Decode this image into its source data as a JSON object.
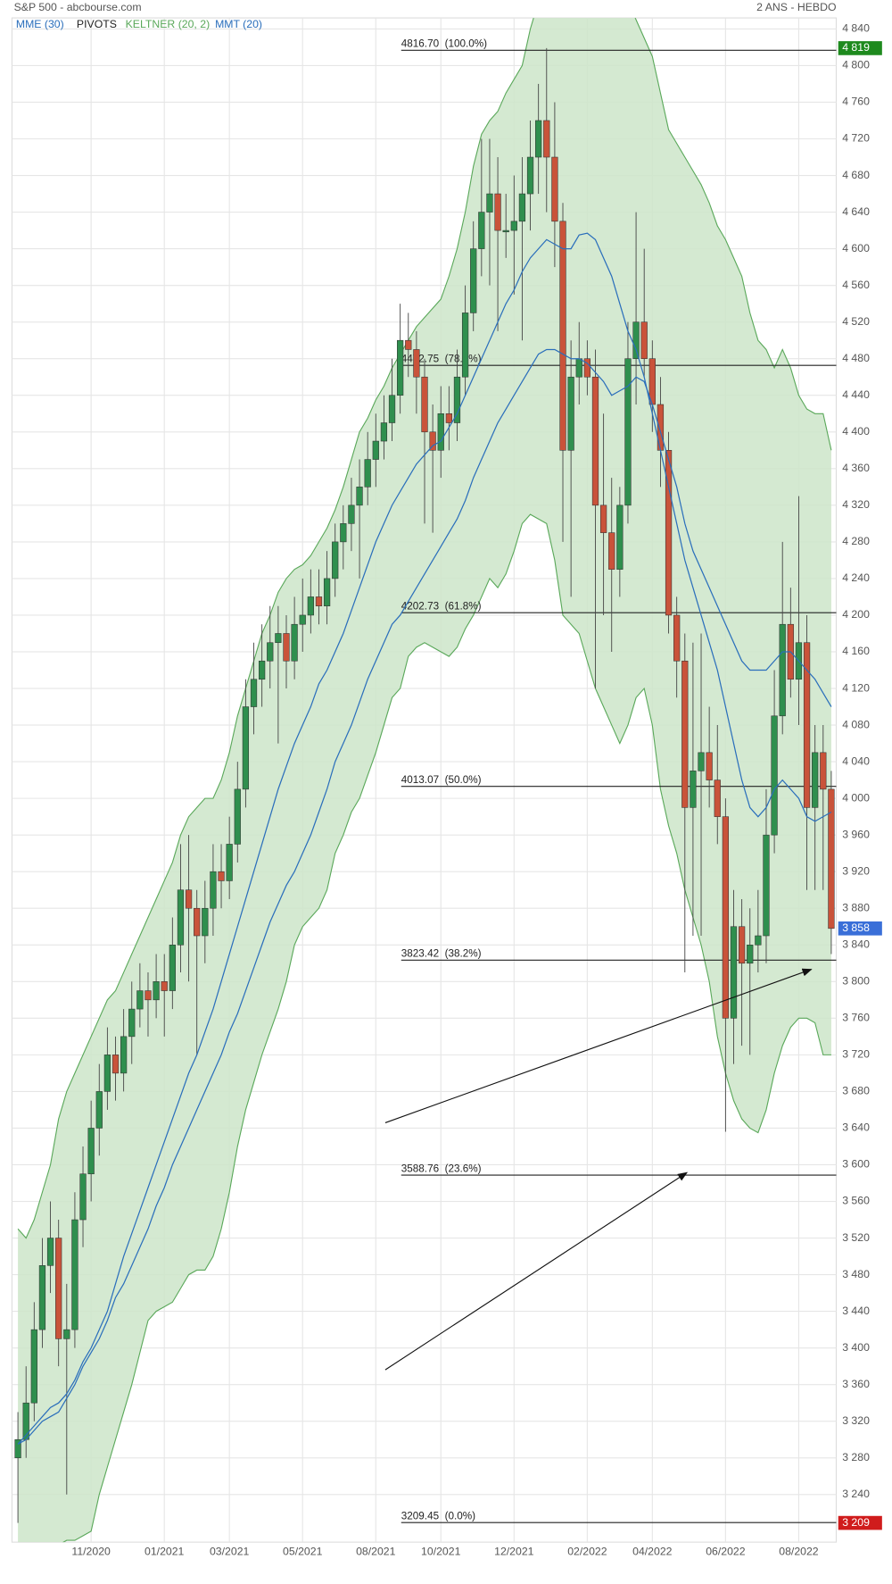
{
  "chart_data": {
    "type": "candlestick",
    "title": "S&P 500 - abcbourse.com",
    "subtitle": "2 ANS - HEBDO",
    "categories": [
      null,
      null,
      null,
      null,
      null,
      null,
      null,
      null,
      null,
      "11/2020",
      null,
      null,
      null,
      null,
      null,
      null,
      null,
      null,
      "01/2021",
      null,
      null,
      null,
      null,
      null,
      null,
      null,
      "03/2021",
      null,
      null,
      null,
      null,
      null,
      null,
      null,
      null,
      "05/2021",
      null,
      null,
      null,
      null,
      null,
      null,
      null,
      null,
      "08/2021",
      null,
      null,
      null,
      null,
      null,
      null,
      null,
      "10/2021",
      null,
      null,
      null,
      null,
      null,
      null,
      null,
      null,
      "12/2021",
      null,
      null,
      null,
      null,
      null,
      null,
      null,
      null,
      "02/2022",
      null,
      null,
      null,
      null,
      null,
      null,
      null,
      "04/2022",
      null,
      null,
      null,
      null,
      null,
      null,
      null,
      null,
      "06/2022",
      null,
      null,
      null,
      null,
      null,
      null,
      null,
      null,
      "08/2022",
      null,
      null,
      null,
      null
    ],
    "open": [
      3280,
      3300,
      3340,
      3420,
      3490,
      3520,
      3410,
      3420,
      3540,
      3590,
      3640,
      3680,
      3720,
      3700,
      3740,
      3770,
      3790,
      3780,
      3800,
      3790,
      3840,
      3900,
      3880,
      3850,
      3880,
      3920,
      3910,
      3950,
      4010,
      4100,
      4130,
      4150,
      4170,
      4180,
      4150,
      4190,
      4200,
      4220,
      4210,
      4240,
      4280,
      4300,
      4320,
      4340,
      4370,
      4390,
      4410,
      4440,
      4500,
      4490,
      4460,
      4400,
      4380,
      4420,
      4410,
      4460,
      4530,
      4600,
      4640,
      4660,
      4620,
      4620,
      4630,
      4660,
      4700,
      4740,
      4700,
      4630,
      4380,
      4460,
      4480,
      4460,
      4320,
      4290,
      4250,
      4320,
      4480,
      4520,
      4480,
      4430,
      4380,
      4200,
      4150,
      3990,
      4030,
      4050,
      4020,
      3980,
      3760,
      3860,
      3820,
      3840,
      3850,
      3960,
      4090,
      4190,
      4130,
      4170,
      3990,
      4050,
      4010
    ],
    "high": [
      3330,
      3380,
      3450,
      3520,
      3560,
      3540,
      3470,
      3570,
      3620,
      3670,
      3710,
      3750,
      3740,
      3770,
      3800,
      3820,
      3810,
      3830,
      3830,
      3870,
      3950,
      3960,
      3900,
      3910,
      3950,
      3950,
      3980,
      4040,
      4130,
      4170,
      4190,
      4210,
      4210,
      4200,
      4220,
      4240,
      4250,
      4250,
      4270,
      4300,
      4320,
      4350,
      4370,
      4400,
      4420,
      4440,
      4480,
      4540,
      4530,
      4510,
      4480,
      4430,
      4450,
      4450,
      4490,
      4560,
      4630,
      4720,
      4720,
      4700,
      4660,
      4680,
      4700,
      4740,
      4780,
      4819,
      4760,
      4650,
      4500,
      4520,
      4500,
      4490,
      4420,
      4350,
      4340,
      4520,
      4640,
      4600,
      4500,
      4460,
      4400,
      4220,
      4180,
      4170,
      4180,
      4100,
      4080,
      4000,
      3900,
      3890,
      3880,
      3900,
      4010,
      4140,
      4280,
      4230,
      4330,
      4200,
      4080,
      4080,
      4030
    ],
    "low": [
      3209,
      3280,
      3320,
      3400,
      3460,
      3380,
      3240,
      3400,
      3510,
      3560,
      3610,
      3660,
      3670,
      3680,
      3710,
      3750,
      3740,
      3760,
      3740,
      3770,
      3810,
      3800,
      3720,
      3820,
      3850,
      3880,
      3890,
      3930,
      3990,
      4070,
      4100,
      4120,
      4060,
      4120,
      4130,
      4160,
      4180,
      4190,
      4190,
      4220,
      4250,
      4270,
      4240,
      4320,
      4340,
      4370,
      4390,
      4420,
      4460,
      4420,
      4300,
      4290,
      4350,
      4380,
      4390,
      4440,
      4510,
      4570,
      4560,
      4510,
      4590,
      4550,
      4500,
      4620,
      4660,
      4640,
      4580,
      4280,
      4220,
      4430,
      4440,
      4120,
      4200,
      4160,
      4220,
      4300,
      4430,
      4460,
      4400,
      4340,
      4180,
      4110,
      3810,
      3850,
      3850,
      3990,
      3950,
      3636,
      3710,
      3730,
      3720,
      3810,
      3820,
      3940,
      4070,
      4110,
      4080,
      3900,
      3900,
      3900,
      3830
    ],
    "close": [
      3300,
      3340,
      3420,
      3490,
      3520,
      3410,
      3420,
      3540,
      3590,
      3640,
      3680,
      3720,
      3700,
      3740,
      3770,
      3790,
      3780,
      3800,
      3790,
      3840,
      3900,
      3880,
      3850,
      3880,
      3920,
      3910,
      3950,
      4010,
      4100,
      4130,
      4150,
      4170,
      4180,
      4150,
      4190,
      4200,
      4220,
      4210,
      4240,
      4280,
      4300,
      4320,
      4340,
      4370,
      4390,
      4410,
      4440,
      4500,
      4490,
      4460,
      4400,
      4380,
      4420,
      4410,
      4460,
      4530,
      4600,
      4640,
      4660,
      4620,
      4620,
      4630,
      4660,
      4700,
      4740,
      4700,
      4630,
      4380,
      4460,
      4480,
      4460,
      4320,
      4290,
      4250,
      4320,
      4480,
      4520,
      4480,
      4430,
      4380,
      4200,
      4150,
      3990,
      4030,
      4050,
      4020,
      3980,
      3760,
      3860,
      3820,
      3840,
      3850,
      3960,
      4090,
      4190,
      4130,
      4170,
      3990,
      4050,
      4010,
      3858
    ],
    "up_color": "#2f8f4e",
    "down_color": "#c9533a",
    "overlays": [
      {
        "name": "MME (30)",
        "type": "line",
        "color": "#2a6ebb",
        "values": [
          3295,
          3300,
          3310,
          3320,
          3325,
          3330,
          3345,
          3360,
          3380,
          3395,
          3410,
          3430,
          3455,
          3470,
          3490,
          3510,
          3530,
          3555,
          3575,
          3600,
          3620,
          3640,
          3660,
          3680,
          3700,
          3720,
          3745,
          3765,
          3790,
          3815,
          3840,
          3865,
          3885,
          3905,
          3920,
          3940,
          3960,
          3985,
          4010,
          4040,
          4060,
          4080,
          4105,
          4130,
          4150,
          4170,
          4190,
          4200,
          4215,
          4230,
          4245,
          4260,
          4275,
          4290,
          4305,
          4325,
          4350,
          4370,
          4390,
          4410,
          4425,
          4440,
          4455,
          4470,
          4485,
          4490,
          4490,
          4485,
          4480,
          4480,
          4475,
          4465,
          4455,
          4440,
          4445,
          4450,
          4460,
          4455,
          4430,
          4400,
          4370,
          4340,
          4300,
          4270,
          4250,
          4230,
          4210,
          4190,
          4170,
          4150,
          4140,
          4140,
          4140,
          4150,
          4160,
          4160,
          4150,
          4140,
          4130,
          4115,
          4100
        ]
      },
      {
        "name": "KELTNER (20, 2)",
        "type": "band",
        "color": "#5aa85a",
        "fill": "#cce5c9",
        "upper": [
          3530,
          3520,
          3540,
          3570,
          3600,
          3650,
          3680,
          3700,
          3720,
          3740,
          3760,
          3780,
          3790,
          3810,
          3830,
          3850,
          3870,
          3890,
          3910,
          3930,
          3960,
          3980,
          3990,
          4000,
          4000,
          4020,
          4050,
          4090,
          4120,
          4150,
          4180,
          4200,
          4225,
          4240,
          4250,
          4255,
          4265,
          4280,
          4295,
          4315,
          4340,
          4370,
          4400,
          4415,
          4435,
          4450,
          4470,
          4485,
          4500,
          4515,
          4525,
          4535,
          4545,
          4570,
          4600,
          4640,
          4690,
          4725,
          4740,
          4750,
          4770,
          4785,
          4800,
          4840,
          4870,
          4880,
          4880,
          4880,
          4870,
          4865,
          4860,
          4860,
          4860,
          4870,
          4880,
          4870,
          4850,
          4830,
          4810,
          4770,
          4730,
          4715,
          4700,
          4685,
          4670,
          4650,
          4625,
          4610,
          4590,
          4570,
          4530,
          4500,
          4490,
          4470,
          4490,
          4470,
          4440,
          4425,
          4420,
          4420,
          4380
        ],
        "lower": [
          3170,
          3170,
          3175,
          3180,
          3180,
          3185,
          3190,
          3190,
          3195,
          3200,
          3240,
          3270,
          3300,
          3330,
          3360,
          3395,
          3430,
          3440,
          3445,
          3450,
          3465,
          3480,
          3485,
          3485,
          3500,
          3530,
          3570,
          3620,
          3660,
          3690,
          3720,
          3745,
          3770,
          3800,
          3840,
          3860,
          3870,
          3880,
          3900,
          3940,
          3960,
          3985,
          4000,
          4025,
          4050,
          4080,
          4110,
          4120,
          4155,
          4165,
          4170,
          4165,
          4160,
          4155,
          4165,
          4185,
          4200,
          4220,
          4240,
          4230,
          4245,
          4270,
          4300,
          4310,
          4305,
          4300,
          4260,
          4200,
          4190,
          4180,
          4150,
          4120,
          4100,
          4080,
          4060,
          4080,
          4110,
          4120,
          4080,
          4010,
          3970,
          3940,
          3900,
          3870,
          3840,
          3800,
          3740,
          3700,
          3670,
          3650,
          3640,
          3635,
          3660,
          3700,
          3730,
          3750,
          3760,
          3760,
          3755,
          3720,
          3720
        ]
      },
      {
        "name": "MMT (20)",
        "type": "line",
        "color": "#2a6ebb",
        "values": [
          3295,
          3305,
          3315,
          3325,
          3335,
          3340,
          3350,
          3365,
          3385,
          3400,
          3420,
          3440,
          3470,
          3500,
          3525,
          3550,
          3575,
          3600,
          3625,
          3650,
          3675,
          3700,
          3720,
          3745,
          3770,
          3800,
          3830,
          3860,
          3890,
          3920,
          3950,
          3980,
          4010,
          4035,
          4060,
          4080,
          4100,
          4125,
          4140,
          4160,
          4180,
          4205,
          4230,
          4255,
          4280,
          4300,
          4320,
          4335,
          4350,
          4365,
          4375,
          4385,
          4390,
          4405,
          4420,
          4440,
          4460,
          4480,
          4500,
          4520,
          4540,
          4555,
          4575,
          4590,
          4600,
          4610,
          4605,
          4600,
          4600,
          4615,
          4617,
          4610,
          4590,
          4570,
          4540,
          4510,
          4490,
          4460,
          4420,
          4380,
          4340,
          4300,
          4260,
          4230,
          4200,
          4170,
          4140,
          4100,
          4060,
          4020,
          3990,
          3980,
          3990,
          4010,
          4020,
          4010,
          4000,
          3980,
          3975,
          3980,
          3985
        ]
      }
    ],
    "pivots": {
      "name": "PIVOTS",
      "color": "#222222",
      "levels": [
        {
          "value": 4816.7,
          "label": "4816.70  (100.0%)"
        },
        {
          "value": 4472.75,
          "label": "4472.75  (78.6%)"
        },
        {
          "value": 4202.73,
          "label": "4202.73  (61.8%)"
        },
        {
          "value": 4013.07,
          "label": "4013.07  (50.0%)"
        },
        {
          "value": 3823.42,
          "label": "3823.42  (38.2%)"
        },
        {
          "value": 3588.76,
          "label": "3588.76  (23.6%)"
        },
        {
          "value": 3209.45,
          "label": "3209.45  (0.0%)"
        }
      ]
    },
    "price_tags": [
      {
        "value": 4819,
        "label": "4 819",
        "color": "#1e8a1e"
      },
      {
        "value": 3858,
        "label": "3 858",
        "color": "#3a6fd8"
      },
      {
        "value": 3209,
        "label": "3 209",
        "color": "#d01c1c"
      }
    ],
    "ylim": [
      3188,
      4852
    ],
    "yticks": [
      {
        "value": 3240,
        "label": "3 240"
      },
      {
        "value": 3280,
        "label": "3 280"
      },
      {
        "value": 3320,
        "label": "3 320"
      },
      {
        "value": 3360,
        "label": "3 360"
      },
      {
        "value": 3400,
        "label": "3 400"
      },
      {
        "value": 3440,
        "label": "3 440"
      },
      {
        "value": 3480,
        "label": "3 480"
      },
      {
        "value": 3520,
        "label": "3 520"
      },
      {
        "value": 3560,
        "label": "3 560"
      },
      {
        "value": 3600,
        "label": "3 600"
      },
      {
        "value": 3640,
        "label": "3 640"
      },
      {
        "value": 3680,
        "label": "3 680"
      },
      {
        "value": 3720,
        "label": "3 720"
      },
      {
        "value": 3760,
        "label": "3 760"
      },
      {
        "value": 3800,
        "label": "3 800"
      },
      {
        "value": 3840,
        "label": "3 840"
      },
      {
        "value": 3880,
        "label": "3 880"
      },
      {
        "value": 3920,
        "label": "3 920"
      },
      {
        "value": 3960,
        "label": "3 960"
      },
      {
        "value": 4000,
        "label": "4 000"
      },
      {
        "value": 4040,
        "label": "4 040"
      },
      {
        "value": 4080,
        "label": "4 080"
      },
      {
        "value": 4120,
        "label": "4 120"
      },
      {
        "value": 4160,
        "label": "4 160"
      },
      {
        "value": 4200,
        "label": "4 200"
      },
      {
        "value": 4240,
        "label": "4 240"
      },
      {
        "value": 4280,
        "label": "4 280"
      },
      {
        "value": 4320,
        "label": "4 320"
      },
      {
        "value": 4360,
        "label": "4 360"
      },
      {
        "value": 4400,
        "label": "4 400"
      },
      {
        "value": 4440,
        "label": "4 440"
      },
      {
        "value": 4480,
        "label": "4 480"
      },
      {
        "value": 4520,
        "label": "4 520"
      },
      {
        "value": 4560,
        "label": "4 560"
      },
      {
        "value": 4600,
        "label": "4 600"
      },
      {
        "value": 4640,
        "label": "4 640"
      },
      {
        "value": 4680,
        "label": "4 680"
      },
      {
        "value": 4720,
        "label": "4 720"
      },
      {
        "value": 4760,
        "label": "4 760"
      },
      {
        "value": 4800,
        "label": "4 800"
      },
      {
        "value": 4840,
        "label": "4 840"
      }
    ],
    "grid": true
  }
}
